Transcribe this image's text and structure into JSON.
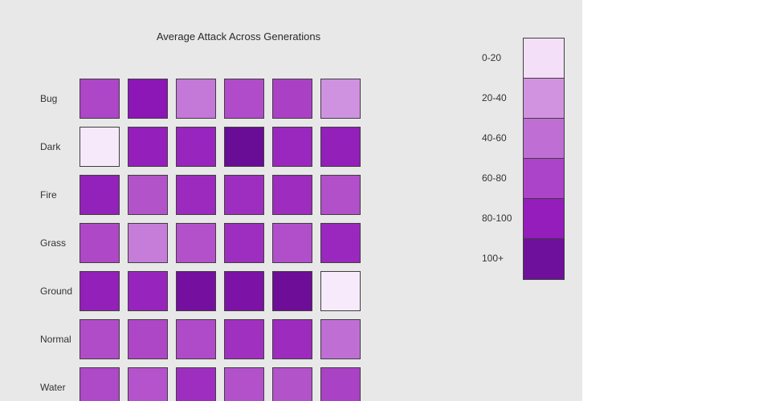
{
  "chart_data": {
    "type": "heatmap",
    "title": "Average Attack Across Generations",
    "rows": [
      "Bug",
      "Dark",
      "Fire",
      "Grass",
      "Ground",
      "Normal",
      "Water"
    ],
    "num_columns": 6,
    "legend": {
      "labels": [
        "0-20",
        "20-40",
        "40-60",
        "60-80",
        "80-100",
        "100+"
      ],
      "colors": [
        "#f3e0f8",
        "#d193e0",
        "#bf6fd4",
        "#ab44c8",
        "#951dbb",
        "#6f109c"
      ]
    },
    "cell_colors": [
      [
        "#ad46c7",
        "#8c16b6",
        "#c478d8",
        "#b04cc9",
        "#aa41c5",
        "#cf92e0"
      ],
      [
        "#f5e9fa",
        "#951fbb",
        "#9825bd",
        "#6a0d96",
        "#9a28be",
        "#9220b9"
      ],
      [
        "#9322ba",
        "#b253ca",
        "#9c2abe",
        "#9e2ec0",
        "#9d2cbf",
        "#b150c9"
      ],
      [
        "#ae48c7",
        "#c67dd9",
        "#b351ca",
        "#9e2ec0",
        "#b14eca",
        "#9a28be"
      ],
      [
        "#9220b9",
        "#9724bc",
        "#750f9f",
        "#7c13a6",
        "#6d0d98",
        "#f6eafb"
      ],
      [
        "#b04cc8",
        "#ad47c6",
        "#af4ac8",
        "#9f30c0",
        "#9c2bbe",
        "#bf6fd4"
      ],
      [
        "#ae49c7",
        "#b453cb",
        "#9e2ec0",
        "#b251ca",
        "#b253ca",
        "#aa42c5"
      ]
    ],
    "cell_value_ranges": [
      [
        "60-80",
        "80-100",
        "40-60",
        "60-80",
        "60-80",
        "20-40"
      ],
      [
        "0-20",
        "80-100",
        "80-100",
        "100+",
        "80-100",
        "80-100"
      ],
      [
        "80-100",
        "60-80",
        "80-100",
        "80-100",
        "80-100",
        "60-80"
      ],
      [
        "60-80",
        "40-60",
        "60-80",
        "80-100",
        "60-80",
        "80-100"
      ],
      [
        "80-100",
        "80-100",
        "100+",
        "100+",
        "100+",
        "0-20"
      ],
      [
        "60-80",
        "60-80",
        "60-80",
        "80-100",
        "80-100",
        "40-60"
      ],
      [
        "60-80",
        "60-80",
        "80-100",
        "60-80",
        "60-80",
        "60-80"
      ]
    ],
    "colors": {
      "background": "#e8e8e8",
      "cell_border": "#3f3f3f",
      "text": "#333333"
    }
  }
}
